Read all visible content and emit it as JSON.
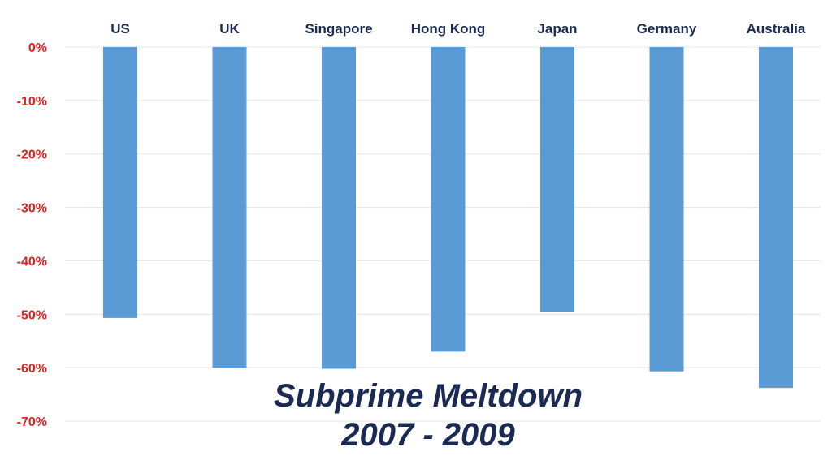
{
  "chart_data": {
    "type": "bar",
    "categories": [
      "US",
      "UK",
      "Singapore",
      "Hong Kong",
      "Japan",
      "Germany",
      "Australia"
    ],
    "values": [
      -50.7,
      -60.0,
      -60.2,
      -57.0,
      -49.5,
      -60.7,
      -63.8
    ],
    "y_tick_labels": [
      "0%",
      "-10%",
      "-20%",
      "-30%",
      "-40%",
      "-50%",
      "-60%",
      "-70%"
    ],
    "ylim": [
      -70,
      0
    ],
    "title_line_1": "Subprime Meltdown",
    "title_line_2": "2007 - 2009",
    "category_axis_position": "top",
    "grid": true,
    "colors": {
      "bar": "#5b9bd5",
      "y_tick": "#e02020",
      "category_label": "#1a2a52",
      "grid": "#e4e4e4",
      "title": "#1a2a52"
    }
  }
}
